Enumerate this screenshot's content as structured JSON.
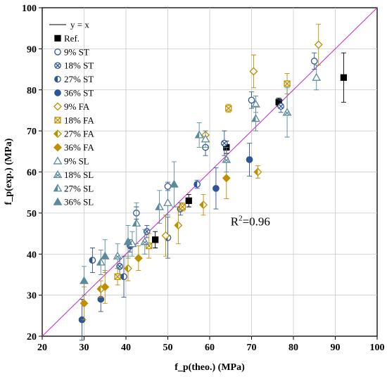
{
  "chart_data": {
    "type": "scatter",
    "title": "",
    "xlabel": "f_p(theo.) (MPa)",
    "ylabel": "f_p(exp.) (MPa)",
    "xlim": [
      20,
      100
    ],
    "ylim": [
      20,
      100
    ],
    "xticks": [
      "20",
      "30",
      "40",
      "50",
      "60",
      "70",
      "80",
      "90",
      "100"
    ],
    "yticks": [
      "20",
      "30",
      "40",
      "50",
      "60",
      "70",
      "80",
      "90",
      "100"
    ],
    "grid": true,
    "legend_position": "top-left",
    "reference_line": {
      "name": "y = x",
      "color": "#cc33cc"
    },
    "annotation": {
      "base": "R",
      "sup": "2",
      "rest": "=0.96",
      "x": 65,
      "y": 47
    },
    "series": [
      {
        "name": "Ref.",
        "marker": "square-filled",
        "color": "#000000",
        "points": [
          [
            47,
            43.5,
            2
          ],
          [
            55,
            53,
            1.5
          ],
          [
            64,
            66,
            1.5
          ],
          [
            76.5,
            77,
            1
          ],
          [
            92,
            83,
            6
          ]
        ]
      },
      {
        "name": "9% ST",
        "marker": "circle-open",
        "color": "#2f5597",
        "points": [
          [
            42.5,
            50,
            1.5
          ],
          [
            50,
            56.5,
            1
          ],
          [
            59,
            66,
            2
          ],
          [
            70,
            77.5,
            2
          ],
          [
            85,
            87,
            2
          ]
        ]
      },
      {
        "name": "18% ST",
        "marker": "circle-cross",
        "color": "#2f5597",
        "points": [
          [
            38.5,
            37,
            2
          ],
          [
            45,
            45.5,
            1.5
          ],
          [
            53,
            51,
            1.5
          ],
          [
            63.5,
            67,
            3
          ],
          [
            77,
            76,
            1.5
          ]
        ]
      },
      {
        "name": "27% ST",
        "marker": "circle-half",
        "color": "#2f5597",
        "points": [
          [
            32,
            38.5,
            3
          ],
          [
            39.5,
            34.5,
            5
          ],
          [
            50,
            44,
            5
          ],
          [
            57,
            57,
            1
          ]
        ]
      },
      {
        "name": "36% ST",
        "marker": "circle-filled",
        "color": "#2f5597",
        "points": [
          [
            29.5,
            24,
            5
          ],
          [
            34,
            29,
            3
          ],
          [
            41,
            42,
            1.5
          ],
          [
            61.5,
            56,
            5
          ],
          [
            69.5,
            63,
            4
          ]
        ]
      },
      {
        "name": "9% FA",
        "marker": "diamond-open",
        "color": "#bf8f00",
        "points": [
          [
            49.5,
            44.5,
            5
          ],
          [
            59,
            69,
            1
          ],
          [
            70.5,
            84.5,
            4
          ],
          [
            86,
            91,
            5
          ]
        ]
      },
      {
        "name": "18% FA",
        "marker": "square-cross",
        "color": "#bf8f00",
        "points": [
          [
            38,
            34.5,
            2
          ],
          [
            45.5,
            42,
            3
          ],
          [
            53.5,
            51.5,
            1
          ],
          [
            64.5,
            75.5,
            1
          ],
          [
            78.5,
            81.5,
            2.5
          ]
        ]
      },
      {
        "name": "27% FA",
        "marker": "diamond-half",
        "color": "#bf8f00",
        "points": [
          [
            34,
            31.5,
            2
          ],
          [
            40.5,
            36.5,
            3
          ],
          [
            52.5,
            47,
            4.5
          ],
          [
            58.5,
            52,
            2.5
          ],
          [
            71.5,
            60,
            1.5
          ]
        ]
      },
      {
        "name": "36% FA",
        "marker": "diamond-filled",
        "color": "#bf8f00",
        "points": [
          [
            30,
            28,
            4
          ],
          [
            35,
            32,
            4
          ],
          [
            43,
            39,
            3
          ],
          [
            64,
            58.5,
            5
          ]
        ]
      },
      {
        "name": "9% SL",
        "marker": "triangle-open",
        "color": "#5b8a9a",
        "points": [
          [
            41.5,
            42.5,
            3
          ],
          [
            50,
            52.5,
            3
          ],
          [
            59,
            68,
            2
          ],
          [
            71,
            76.5,
            2
          ],
          [
            85.5,
            83,
            3
          ]
        ]
      },
      {
        "name": "18% SL",
        "marker": "triangle-cross",
        "color": "#5b8a9a",
        "points": [
          [
            38,
            39.5,
            3
          ],
          [
            44.5,
            43,
            3
          ],
          [
            64,
            63,
            3
          ],
          [
            78.5,
            74.5,
            6
          ]
        ]
      },
      {
        "name": "27% SL",
        "marker": "triangle-half",
        "color": "#5b8a9a",
        "points": [
          [
            34,
            38,
            3
          ],
          [
            42.5,
            47.5,
            5
          ],
          [
            48,
            51.5,
            4
          ],
          [
            57.5,
            69,
            3
          ],
          [
            71,
            73,
            3
          ]
        ]
      },
      {
        "name": "36% SL",
        "marker": "triangle-filled",
        "color": "#5b8a9a",
        "points": [
          [
            30,
            33.5,
            3.5
          ],
          [
            35,
            39.5,
            4
          ],
          [
            40.5,
            43,
            4
          ],
          [
            51.5,
            57,
            5.5
          ]
        ]
      }
    ]
  }
}
